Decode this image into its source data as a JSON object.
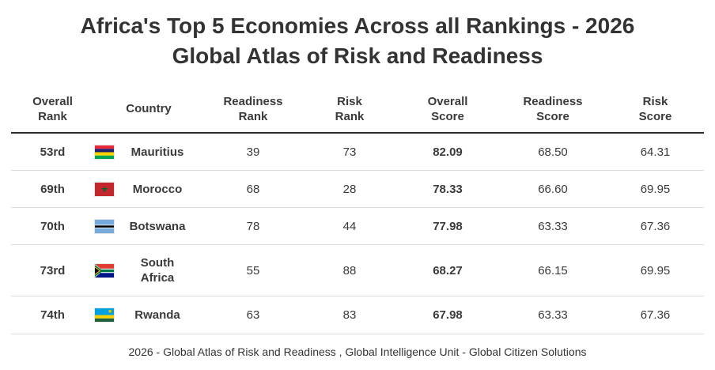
{
  "title": {
    "line1": "Africa's Top 5 Economies Across all Rankings - 2026",
    "line2": "Global Atlas of Risk and Readiness"
  },
  "table": {
    "headers": {
      "overall_rank": [
        "Overall",
        "Rank"
      ],
      "country": "Country",
      "readiness_rank": [
        "Readiness",
        "Rank"
      ],
      "risk_rank": [
        "Risk",
        "Rank"
      ],
      "overall_score": [
        "Overall",
        "Score"
      ],
      "readiness_score": [
        "Readiness",
        "Score"
      ],
      "risk_score": [
        "Risk",
        "Score"
      ]
    },
    "rows": [
      {
        "overall_rank": "53rd",
        "country": [
          "Mauritius"
        ],
        "flag": "mauritius-flag-icon",
        "readiness_rank": "39",
        "risk_rank": "73",
        "overall_score": "82.09",
        "readiness_score": "68.50",
        "risk_score": "64.31"
      },
      {
        "overall_rank": "69th",
        "country": [
          "Morocco"
        ],
        "flag": "morocco-flag-icon",
        "readiness_rank": "68",
        "risk_rank": "28",
        "overall_score": "78.33",
        "readiness_score": "66.60",
        "risk_score": "69.95"
      },
      {
        "overall_rank": "70th",
        "country": [
          "Botswana"
        ],
        "flag": "botswana-flag-icon",
        "readiness_rank": "78",
        "risk_rank": "44",
        "overall_score": "77.98",
        "readiness_score": "63.33",
        "risk_score": "67.36"
      },
      {
        "overall_rank": "73rd",
        "country": [
          "South",
          "Africa"
        ],
        "flag": "south-africa-flag-icon",
        "readiness_rank": "55",
        "risk_rank": "88",
        "overall_score": "68.27",
        "readiness_score": "66.15",
        "risk_score": "69.95"
      },
      {
        "overall_rank": "74th",
        "country": [
          "Rwanda"
        ],
        "flag": "rwanda-flag-icon",
        "readiness_rank": "63",
        "risk_rank": "83",
        "overall_score": "67.98",
        "readiness_score": "63.33",
        "risk_score": "67.36"
      }
    ]
  },
  "footer": "2026 - Global Atlas of Risk and Readiness , Global Intelligence Unit - Global Citizen Solutions",
  "colors": {
    "text": "#3a3a3a",
    "header_rule": "#2b2b2b",
    "row_rule": "#dddddd"
  }
}
